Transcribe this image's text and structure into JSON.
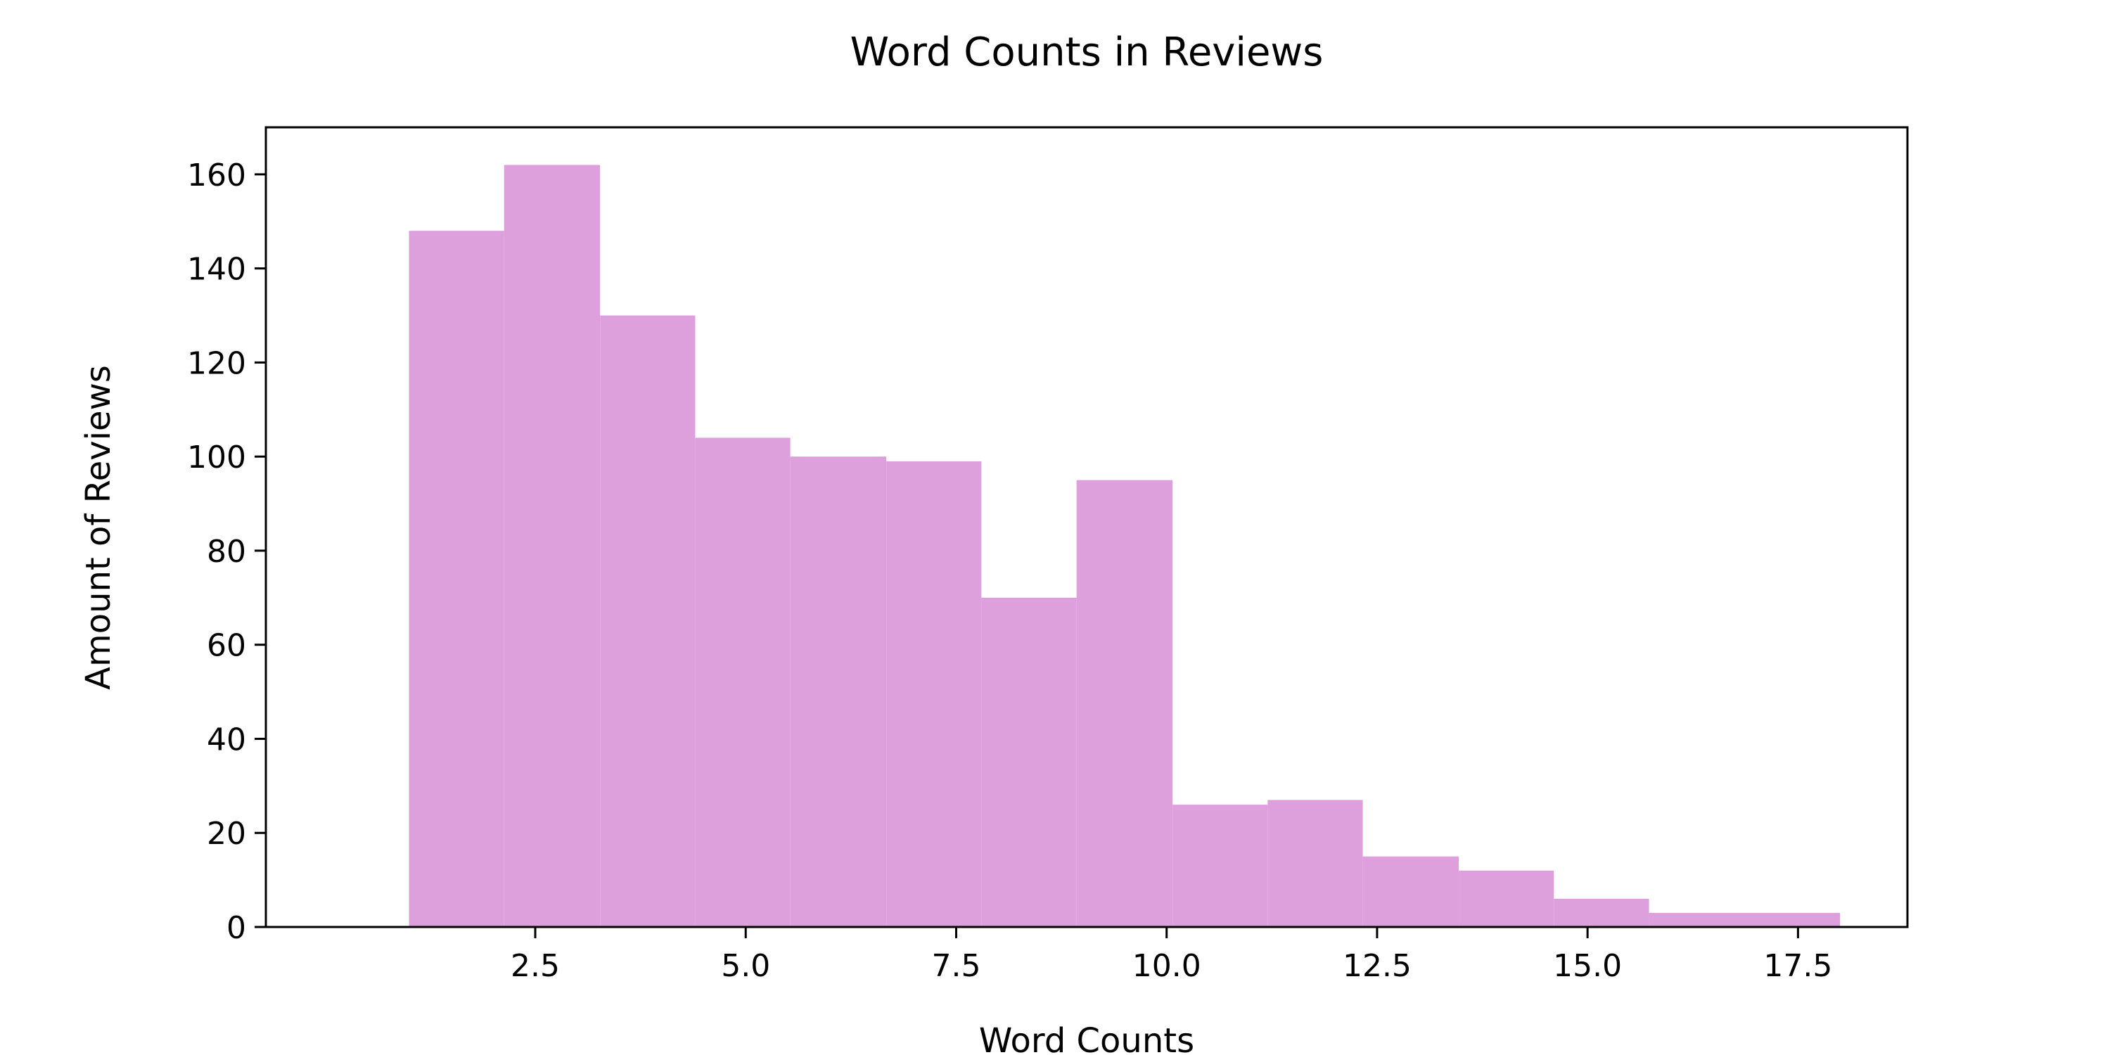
{
  "chart_data": {
    "type": "bar",
    "title": "Word Counts in Reviews",
    "xlabel": "Word Counts",
    "ylabel": "Amount of Reviews",
    "bin_edges": [
      1.0,
      2.13,
      3.27,
      4.4,
      5.53,
      6.67,
      7.8,
      8.93,
      10.07,
      11.2,
      12.33,
      13.47,
      14.6,
      15.73,
      16.87,
      18.0
    ],
    "values": [
      148,
      162,
      130,
      104,
      100,
      99,
      70,
      95,
      26,
      27,
      15,
      12,
      6,
      3,
      3
    ],
    "xlim": [
      -0.7,
      18.8
    ],
    "ylim": [
      0,
      170
    ],
    "x_ticks": [
      "2.5",
      "5.0",
      "7.5",
      "10.0",
      "12.5",
      "15.0",
      "17.5"
    ],
    "y_ticks": [
      "0",
      "20",
      "40",
      "60",
      "80",
      "100",
      "120",
      "140",
      "160"
    ],
    "bar_color": "#dda0dd",
    "grid": false,
    "legend": "none"
  }
}
